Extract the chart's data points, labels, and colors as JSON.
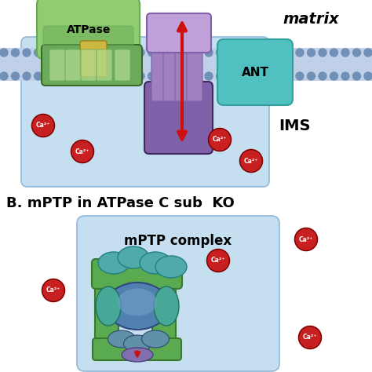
{
  "title_text": "B. mPTP in ATPase C sub  KO",
  "matrix_text": "matrix",
  "ims_text": "IMS",
  "atpase_text": "ATPase",
  "ant_text": "ANT",
  "mptp_complex_text": "mPTP complex",
  "bg_color": "#ffffff",
  "ims_box_color": "#c5dff0",
  "lipid_color": "#c0d0e8",
  "lipid_head_color": "#7090b8",
  "atpase_green_dark": "#6aaa5a",
  "atpase_green_light": "#90cc70",
  "atpase_yellow": "#ccb840",
  "purple_dark": "#8060a8",
  "purple_light": "#a080c0",
  "teal_dark": "#30a0a0",
  "teal_light": "#50c0c0",
  "red_color": "#cc1010",
  "ca_red": "#c82020",
  "ca_dark": "#800000",
  "green_frame": "#5aaa50",
  "green_frame_dark": "#3a7a30",
  "teal_blob": "#50aaaa",
  "blue_main": "#5080b0",
  "blue_light": "#70a0c8"
}
